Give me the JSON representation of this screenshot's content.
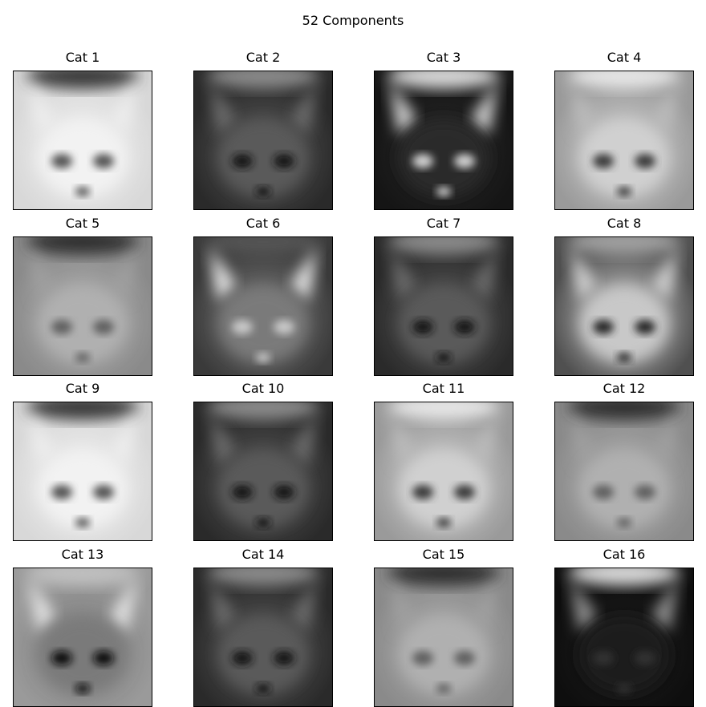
{
  "figure": {
    "title": "52 Components"
  },
  "panels": [
    {
      "title": "Cat 1",
      "tone": "bright"
    },
    {
      "title": "Cat 2",
      "tone": "dark"
    },
    {
      "title": "Cat 3",
      "tone": "dark-bright-eyes"
    },
    {
      "title": "Cat 4",
      "tone": "light"
    },
    {
      "title": "Cat 5",
      "tone": "mid"
    },
    {
      "title": "Cat 6",
      "tone": "mid-bright-ears"
    },
    {
      "title": "Cat 7",
      "tone": "dark"
    },
    {
      "title": "Cat 8",
      "tone": "light-dark-right"
    },
    {
      "title": "Cat 9",
      "tone": "bright"
    },
    {
      "title": "Cat 10",
      "tone": "dark"
    },
    {
      "title": "Cat 11",
      "tone": "light"
    },
    {
      "title": "Cat 12",
      "tone": "mid"
    },
    {
      "title": "Cat 13",
      "tone": "mid-dark-eyes"
    },
    {
      "title": "Cat 14",
      "tone": "dark"
    },
    {
      "title": "Cat 15",
      "tone": "mid"
    },
    {
      "title": "Cat 16",
      "tone": "very-dark"
    }
  ]
}
